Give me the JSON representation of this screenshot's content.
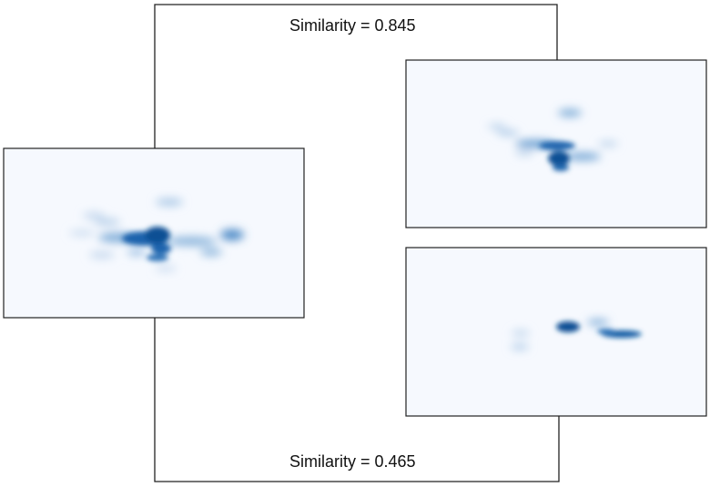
{
  "similarities": [
    {
      "text": "Similarity = 0.845"
    },
    {
      "text": "Similarity = 0.465"
    }
  ],
  "heatmaps": {
    "fill_color": "#f6f9fe",
    "blob_color": "#0b5aa3",
    "border_color": "#222222"
  }
}
